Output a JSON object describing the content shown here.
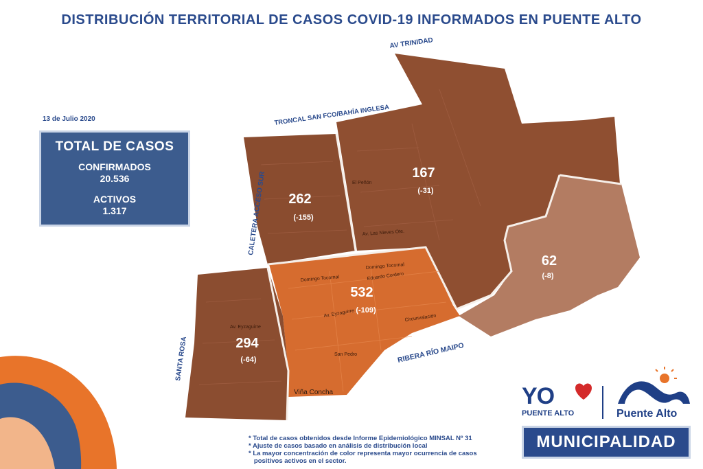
{
  "title": "DISTRIBUCIÓN TERRITORIAL DE CASOS COVID-19 INFORMADOS EN PUENTE ALTO",
  "date": "13 de Julio 2020",
  "totals": {
    "heading": "TOTAL DE CASOS",
    "confirmed_label": "CONFIRMADOS",
    "confirmed_value": "20.536",
    "active_label": "ACTIVOS",
    "active_value": "1.317"
  },
  "roads": {
    "av_trinidad": "AV TRINIDAD",
    "troncal": "TRONCAL SAN FCO/BAHÍA INGLESA",
    "caletera": "CALETERA ACCESO SUR",
    "santa_rosa": "SANTA ROSA",
    "ribera": "RIBERA RÍO MAIPO"
  },
  "sectors": {
    "nw": {
      "count": "262",
      "delta": "(-155)"
    },
    "n": {
      "count": "167",
      "delta": "(-31)"
    },
    "e": {
      "count": "62",
      "delta": "(-8)"
    },
    "c": {
      "count": "532",
      "delta": "(-109)"
    },
    "w": {
      "count": "294",
      "delta": "(-64)"
    }
  },
  "streets": {
    "vina": "Viña Concha",
    "domingo1": "Domingo Tocornal",
    "domingo2": "Domingo Tocornal",
    "eyzaguirre": "Av. Eyzaguirre",
    "san_pedro": "San Pedro",
    "circunvalacion": "Circunvalación",
    "eduardo": "Eduardo Cordero",
    "penon": "El Peñón",
    "nieves": "Av. Las Nieves Ote."
  },
  "colors": {
    "dark_sector": "#8c4e30",
    "mid_sector": "#9a5a3a",
    "center_sector": "#d46a2e",
    "east_sector": "#b07a60",
    "accent_blue": "#2a4a8c"
  },
  "notes": [
    "* Total de casos obtenidos desde Informe Epidemiológico MINSAL Nº 31",
    "* Ajuste de casos basado en análisis de distribución local",
    "* La mayor concentración de color representa mayor ocurrencia de casos",
    "   positivos activos en el sector."
  ],
  "logos": {
    "yo": "YO",
    "yo_sub": "PUENTE ALTO",
    "pa": "Puente Alto",
    "muni": "MUNICIPALIDAD"
  }
}
